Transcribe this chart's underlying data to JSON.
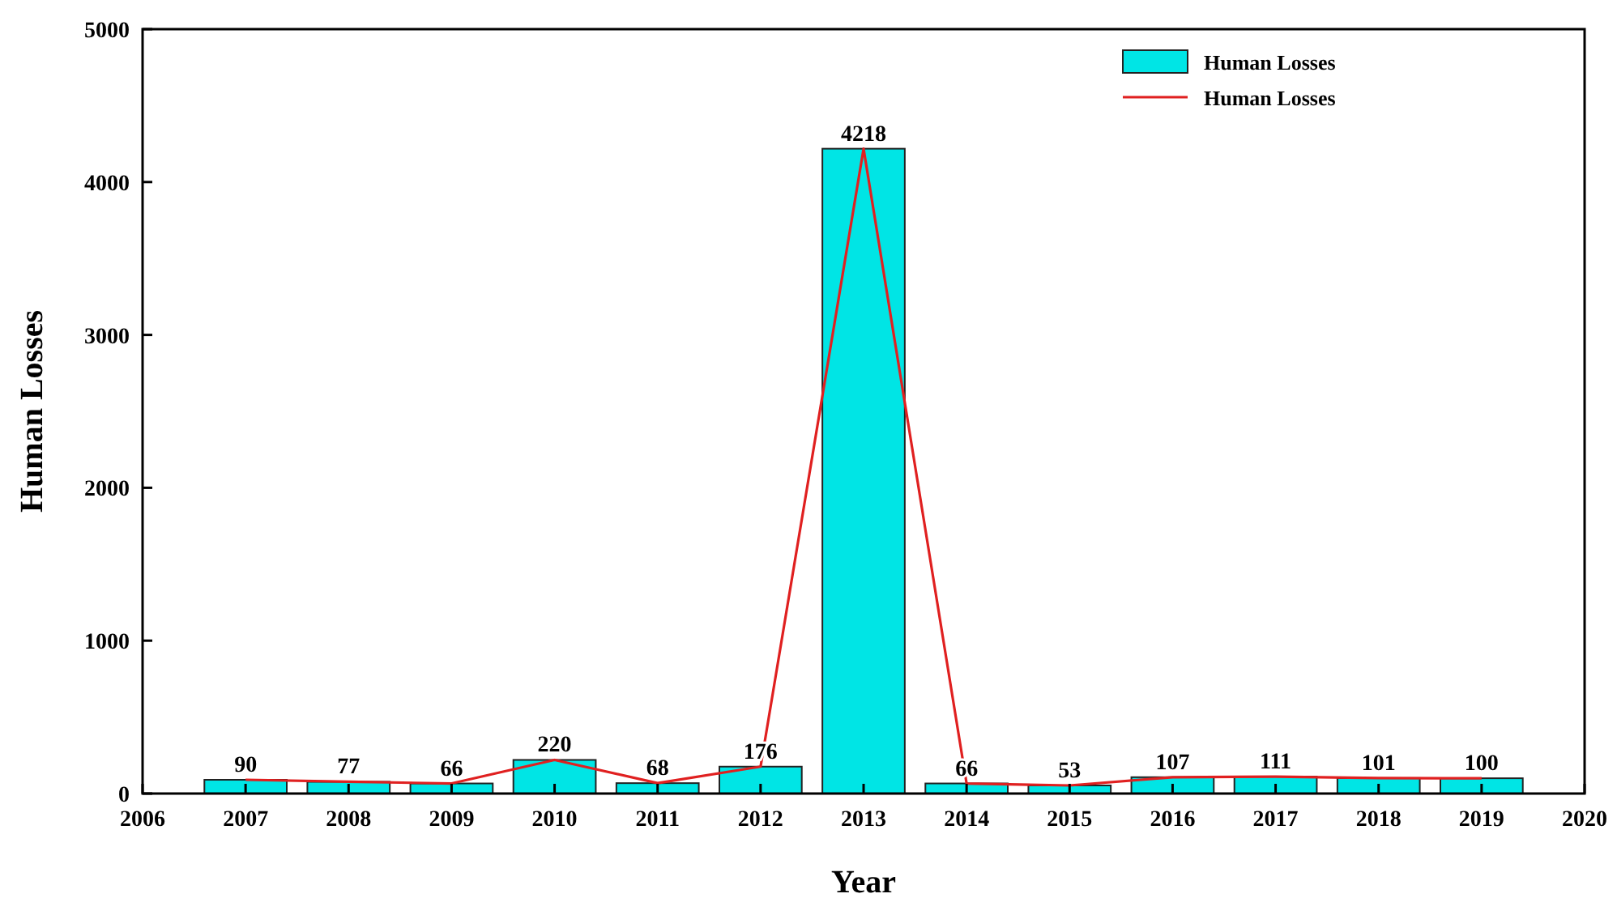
{
  "chart_data": {
    "type": "bar",
    "xlabel": "Year",
    "ylabel": "Human Losses",
    "x": [
      2007,
      2008,
      2009,
      2010,
      2011,
      2012,
      2013,
      2014,
      2015,
      2016,
      2017,
      2018,
      2019
    ],
    "series": [
      {
        "name": "Human Losses",
        "color": "#00e5e5",
        "values": [
          90,
          77,
          66,
          220,
          68,
          176,
          4218,
          66,
          53,
          107,
          111,
          101,
          100
        ],
        "value_labels": [
          "90",
          "77",
          "66",
          "220",
          "68",
          "176",
          "4218",
          "66",
          "53",
          "107",
          "111",
          "101",
          "100"
        ]
      },
      {
        "name": "Human Losses",
        "type": "line",
        "color": "#e02020",
        "values": [
          90,
          77,
          66,
          220,
          68,
          176,
          4218,
          66,
          53,
          107,
          111,
          101,
          100
        ]
      }
    ],
    "xlim": [
      2006,
      2020
    ],
    "xticks": [
      2006,
      2007,
      2008,
      2009,
      2010,
      2011,
      2012,
      2013,
      2014,
      2015,
      2016,
      2017,
      2018,
      2019,
      2020
    ],
    "ylim": [
      0,
      5000
    ],
    "yticks": [
      0,
      1000,
      2000,
      3000,
      4000,
      5000
    ],
    "legend": "top right",
    "grid": false,
    "marker": "none",
    "line_style": "solid"
  }
}
